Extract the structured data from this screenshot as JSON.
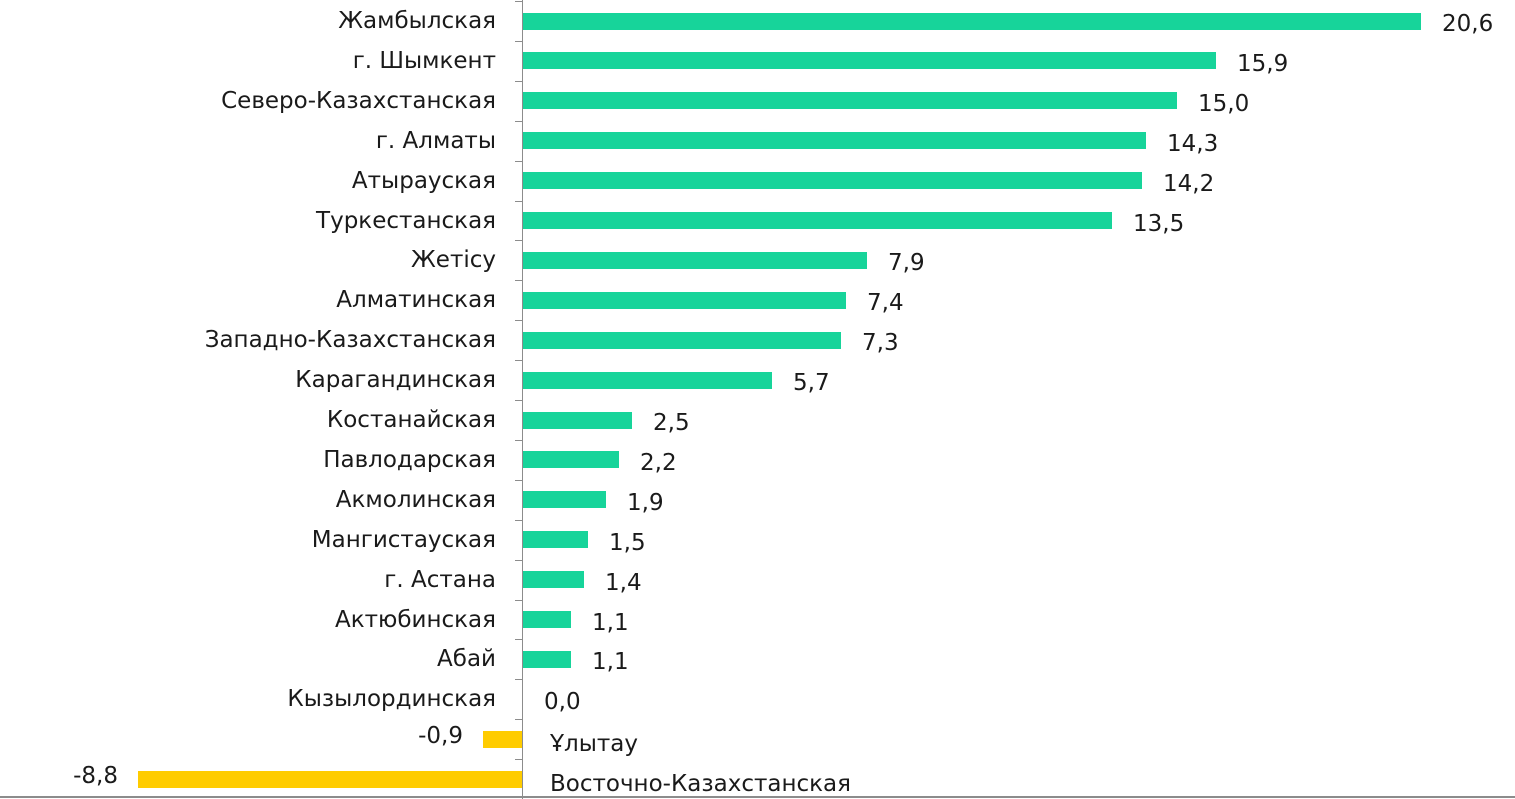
{
  "chart_data": {
    "type": "bar",
    "orientation": "horizontal",
    "title": "",
    "xlabel": "",
    "ylabel": "",
    "grid": false,
    "legend": null,
    "categories": [
      "Жамбылская",
      "г. Шымкент",
      "Северо-Казахстанская",
      "г. Алматы",
      "Атырауская",
      "Туркестанская",
      "Жетісу",
      "Алматинская",
      "Западно-Казахстанская",
      "Карагандинская",
      "Костанайская",
      "Павлодарская",
      "Акмолинская",
      "Мангистауская",
      "г. Астана",
      "Актюбинская",
      "Абай",
      "Кызылординская",
      "Ұлытау",
      "Восточно-Казахстанская"
    ],
    "values": [
      20.6,
      15.9,
      15.0,
      14.3,
      14.2,
      13.5,
      7.9,
      7.4,
      7.3,
      5.7,
      2.5,
      2.2,
      1.9,
      1.5,
      1.4,
      1.1,
      1.1,
      0.0,
      -0.9,
      -8.8
    ],
    "value_labels": [
      "20,6",
      "15,9",
      "15,0",
      "14,3",
      "14,2",
      "13,5",
      "7,9",
      "7,4",
      "7,3",
      "5,7",
      "2,5",
      "2,2",
      "1,9",
      "1,5",
      "1,4",
      "1,1",
      "1,1",
      "0,0",
      "-0,9",
      "-8,8"
    ],
    "xlim": [
      -12,
      21.5
    ],
    "colors": {
      "positive": "#17d49a",
      "negative": "#ffcc00",
      "axis": "#8c8c8c",
      "text": "#1a1a1a"
    }
  }
}
